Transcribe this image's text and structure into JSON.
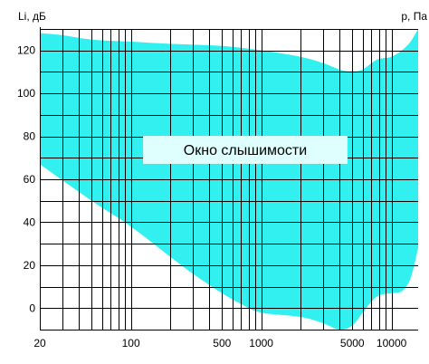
{
  "chart_data": {
    "type": "area",
    "title": "",
    "xlabel": "p, Па",
    "ylabel": "Li, дБ",
    "x_scale": "log",
    "xlim": [
      20,
      16000
    ],
    "ylim": [
      -10,
      130
    ],
    "x_ticks": [
      20,
      100,
      500,
      1000,
      5000,
      10000
    ],
    "y_ticks": [
      0,
      20,
      40,
      60,
      80,
      100,
      120
    ],
    "grid": true,
    "annotation": "Окно слышимости",
    "colors": {
      "fill": "#33F0F0",
      "grid": "#000000",
      "box": "#DFFFFF"
    },
    "upper_curve": [
      {
        "x": 20,
        "y": 128
      },
      {
        "x": 30,
        "y": 127
      },
      {
        "x": 50,
        "y": 125
      },
      {
        "x": 100,
        "y": 124
      },
      {
        "x": 200,
        "y": 123
      },
      {
        "x": 500,
        "y": 122
      },
      {
        "x": 1000,
        "y": 120
      },
      {
        "x": 2000,
        "y": 117
      },
      {
        "x": 3000,
        "y": 114
      },
      {
        "x": 4000,
        "y": 111
      },
      {
        "x": 5000,
        "y": 110
      },
      {
        "x": 6000,
        "y": 111
      },
      {
        "x": 7000,
        "y": 114
      },
      {
        "x": 8000,
        "y": 116
      },
      {
        "x": 10000,
        "y": 117
      },
      {
        "x": 12000,
        "y": 120
      },
      {
        "x": 14000,
        "y": 124
      },
      {
        "x": 16000,
        "y": 130
      }
    ],
    "lower_curve": [
      {
        "x": 20,
        "y": 67
      },
      {
        "x": 50,
        "y": 50
      },
      {
        "x": 100,
        "y": 38
      },
      {
        "x": 200,
        "y": 24
      },
      {
        "x": 300,
        "y": 16
      },
      {
        "x": 500,
        "y": 7
      },
      {
        "x": 700,
        "y": 2
      },
      {
        "x": 1000,
        "y": -2
      },
      {
        "x": 2000,
        "y": -4
      },
      {
        "x": 3000,
        "y": -7
      },
      {
        "x": 4000,
        "y": -10
      },
      {
        "x": 5000,
        "y": -8
      },
      {
        "x": 6000,
        "y": -2
      },
      {
        "x": 7000,
        "y": 3
      },
      {
        "x": 8000,
        "y": 6
      },
      {
        "x": 10000,
        "y": 7
      },
      {
        "x": 12000,
        "y": 8
      },
      {
        "x": 14000,
        "y": 14
      },
      {
        "x": 16000,
        "y": 28
      }
    ]
  }
}
